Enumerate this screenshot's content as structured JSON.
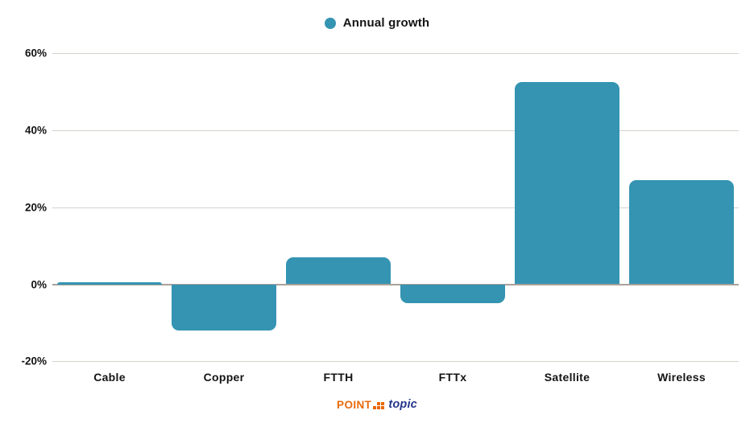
{
  "chart_data": {
    "type": "bar",
    "title": "",
    "legend": [
      {
        "label": "Annual growth",
        "color": "#3494b2"
      }
    ],
    "legend_position": "top-center",
    "categories": [
      "Cable",
      "Copper",
      "FTTH",
      "FTTx",
      "Satellite",
      "Wireless"
    ],
    "values": [
      0.3,
      -12,
      7,
      -5,
      52.5,
      27
    ],
    "unit": "%",
    "xlabel": "",
    "ylabel": "",
    "ylim": [
      -20,
      60
    ],
    "y_ticks": [
      {
        "label": "60%",
        "value": 60
      },
      {
        "label": "40%",
        "value": 40
      },
      {
        "label": "20%",
        "value": 20
      },
      {
        "label": "0%",
        "value": 0
      },
      {
        "label": "-20%",
        "value": -20
      }
    ],
    "grid": true,
    "bar_color": "#3494b2",
    "gridline_color": "#d6d2cb",
    "zero_line_color": "#a9a29b",
    "text_color": "#141414"
  },
  "footer": {
    "logo_point": "POINT",
    "logo_topic": "topic",
    "logo_point_color": "#e8690b",
    "logo_topic_color": "#24368b"
  }
}
